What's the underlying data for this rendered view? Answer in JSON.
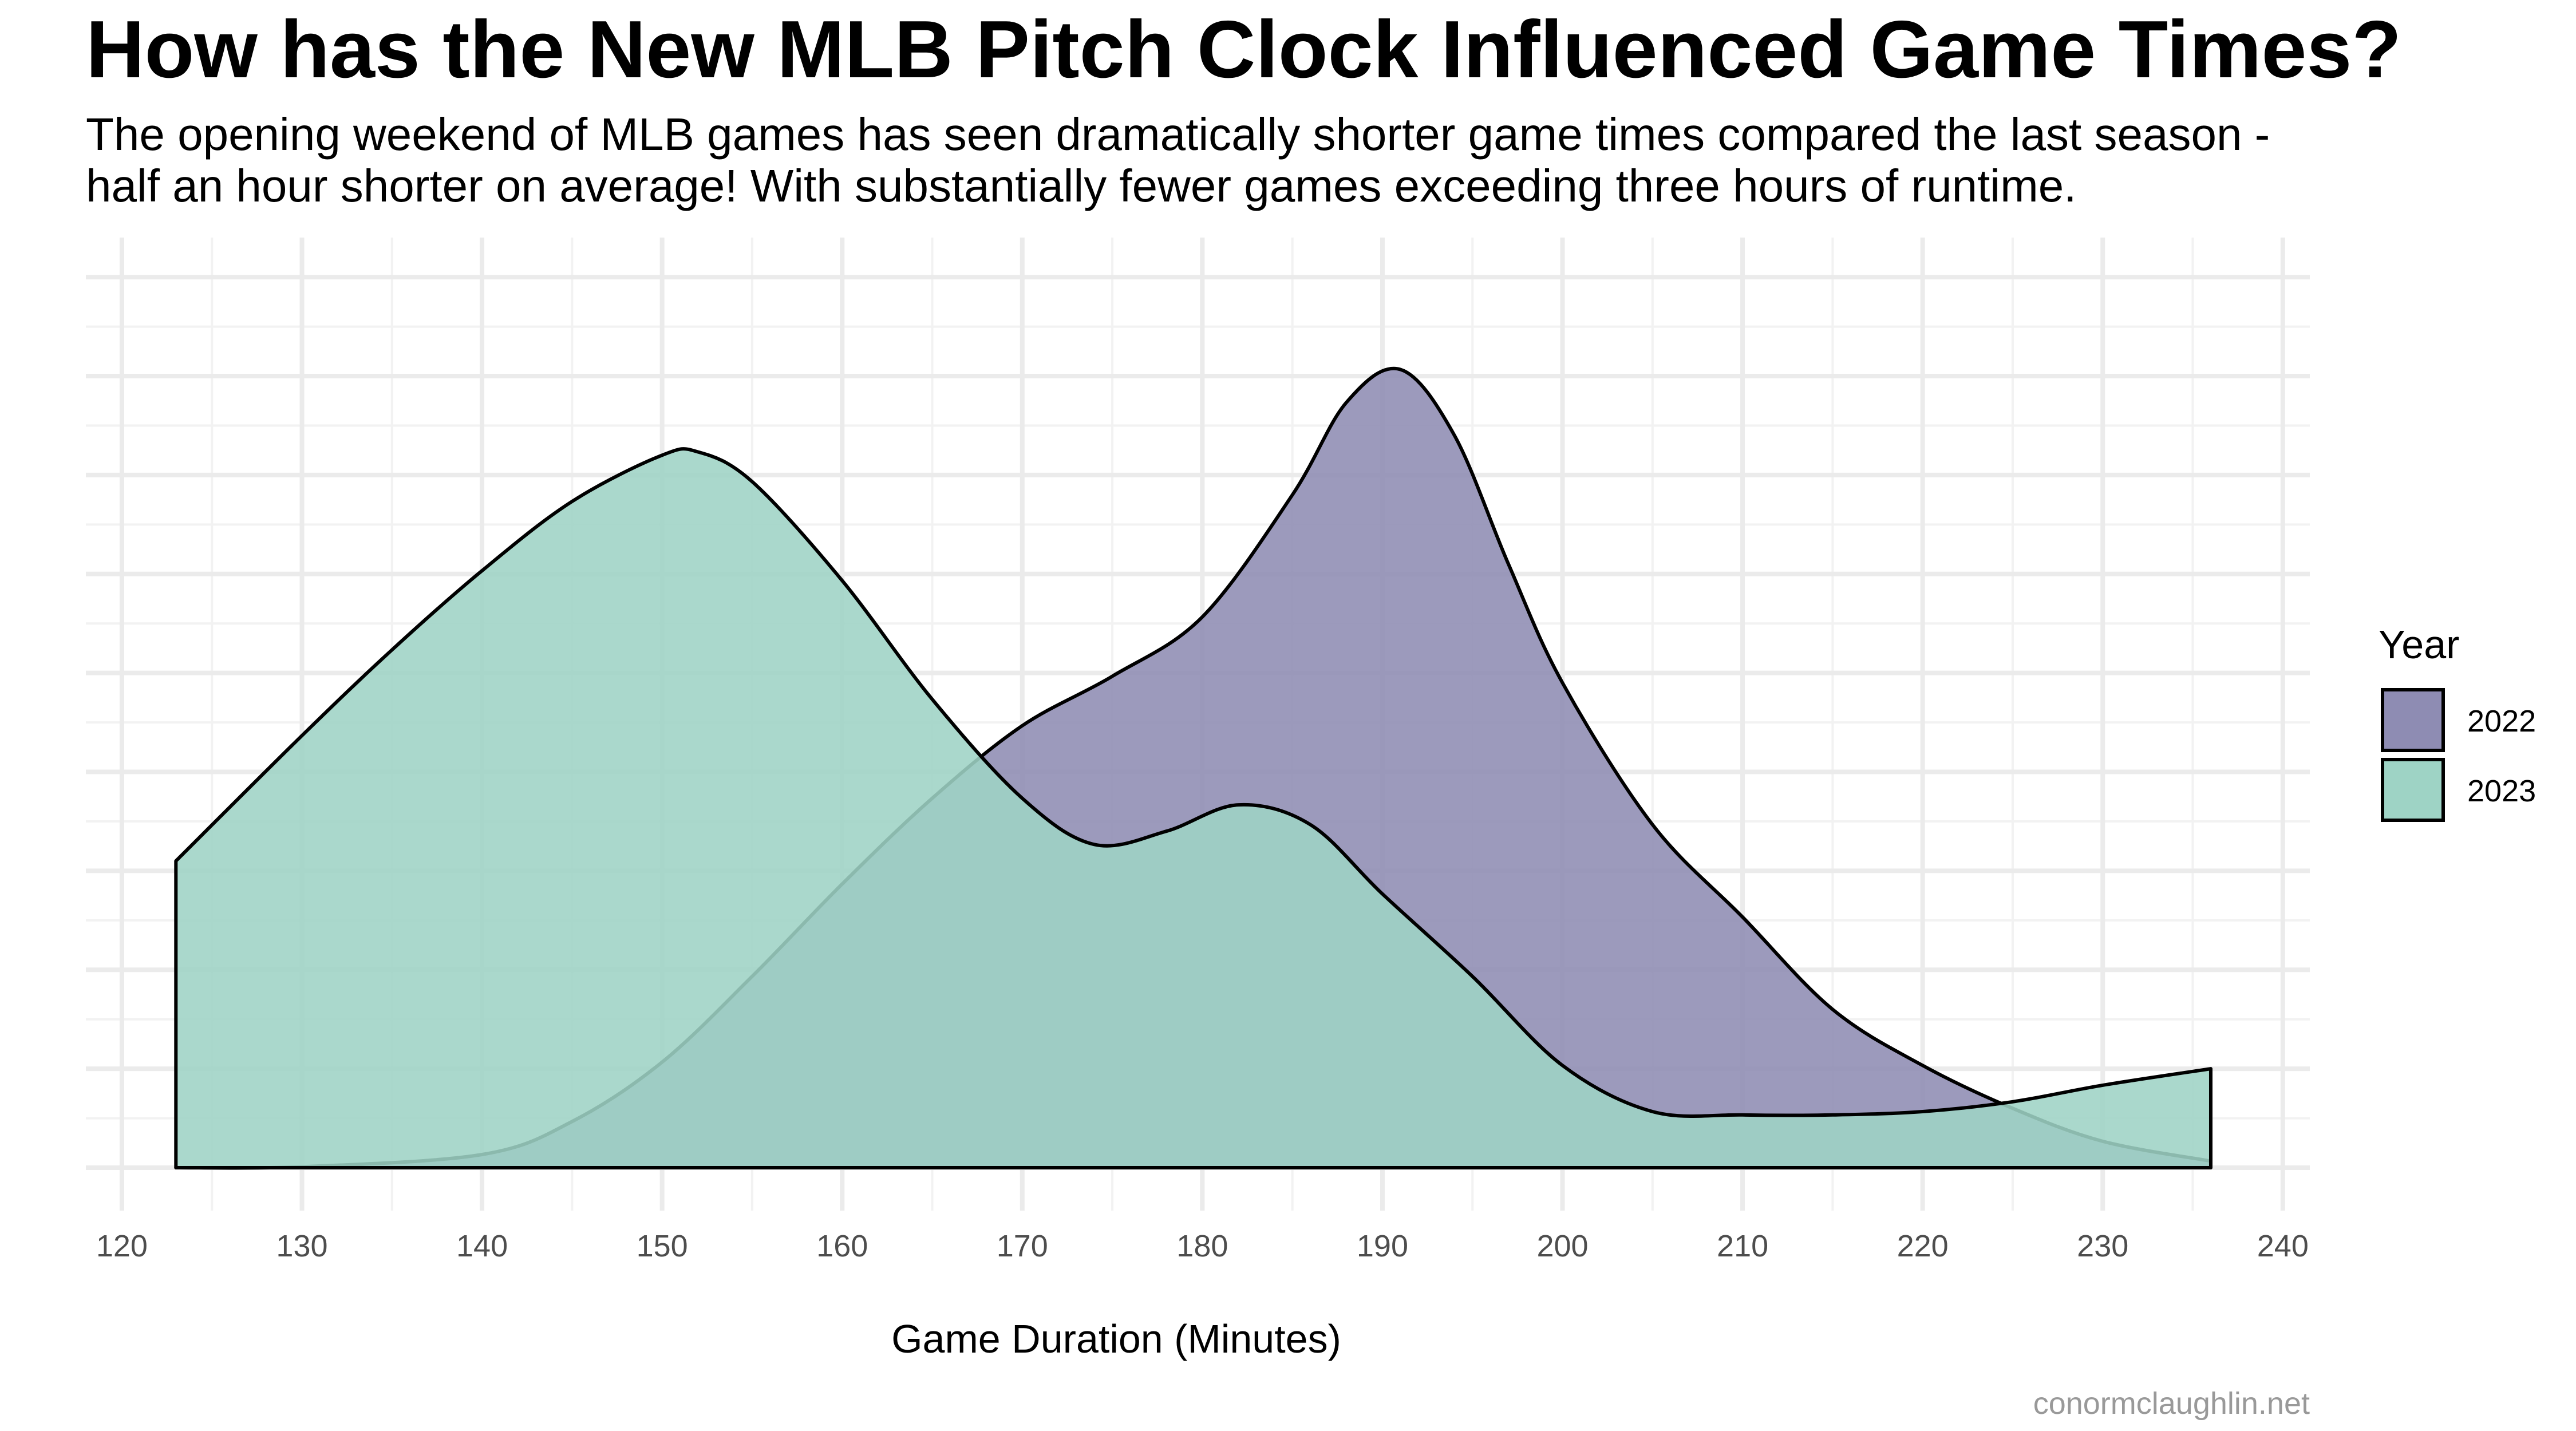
{
  "chart_data": {
    "type": "area",
    "title": "How has the New MLB Pitch Clock Influenced Game Times?",
    "subtitle_lines": [
      "The opening weekend of MLB games has seen dramatically shorter game times compared the last season -",
      "half an hour shorter on average! With substantially fewer games exceeding three hours of runtime."
    ],
    "xlabel": "Game Duration (Minutes)",
    "ylabel": "",
    "xlim": [
      118,
      241.5
    ],
    "ylim": [
      0,
      0.0282
    ],
    "x_ticks": [
      120,
      130,
      140,
      150,
      160,
      170,
      180,
      190,
      200,
      210,
      220,
      230,
      240
    ],
    "y_grid": [
      0.0,
      0.003,
      0.006,
      0.009,
      0.012,
      0.015,
      0.018,
      0.021,
      0.024,
      0.027
    ],
    "grid": true,
    "legend": {
      "title": "Year",
      "placement": "right"
    },
    "caption": "conormclaughlin.net",
    "series": [
      {
        "name": "2022",
        "color": "#8e8cb3",
        "x": [
          123,
          130,
          140,
          145,
          150,
          155,
          160,
          165,
          170,
          175,
          180,
          185,
          188,
          191,
          194,
          197,
          200,
          205,
          210,
          215,
          220,
          225,
          230,
          236
        ],
        "y": [
          0.0,
          3e-05,
          0.0004,
          0.0014,
          0.0032,
          0.0058,
          0.0086,
          0.0112,
          0.0134,
          0.0149,
          0.0167,
          0.0204,
          0.0232,
          0.0242,
          0.0222,
          0.0183,
          0.0147,
          0.0104,
          0.0076,
          0.0048,
          0.0031,
          0.0018,
          0.0008,
          0.0002
        ]
      },
      {
        "name": "2023",
        "color": "#9ed3c5",
        "x": [
          123,
          130,
          135,
          140,
          145,
          150,
          152,
          155,
          160,
          165,
          170,
          174,
          178,
          182,
          186,
          190,
          195,
          200,
          205,
          210,
          215,
          220,
          225,
          230,
          236
        ],
        "y": [
          0.0093,
          0.0131,
          0.0157,
          0.0181,
          0.0202,
          0.0216,
          0.0217,
          0.0208,
          0.0178,
          0.0142,
          0.0112,
          0.0098,
          0.0102,
          0.011,
          0.0104,
          0.0083,
          0.0058,
          0.0031,
          0.0017,
          0.0016,
          0.0016,
          0.0017,
          0.002,
          0.0025,
          0.003
        ]
      }
    ]
  }
}
